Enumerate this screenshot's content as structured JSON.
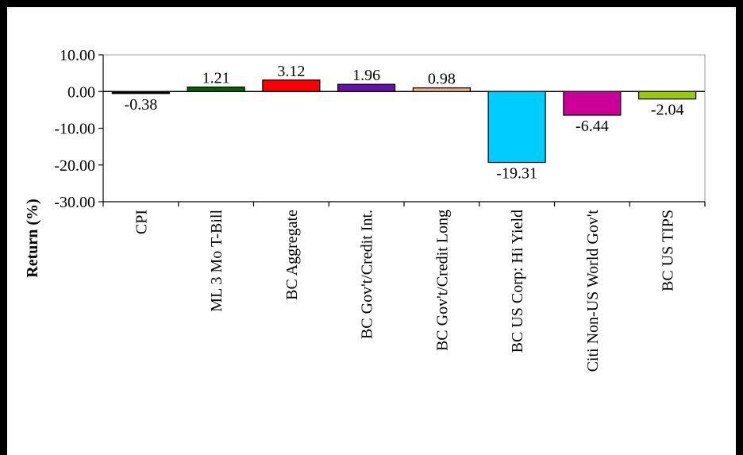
{
  "chart_data": {
    "type": "bar",
    "categories": [
      "CPI",
      "ML 3 Mo T-Bill",
      "BC Aggregate",
      "BC Gov't/Credit Int.",
      "BC Gov't/Credit Long",
      "BC US Corp: Hi Yield",
      "Citi Non-US World Gov't",
      "BC US TIPS"
    ],
    "values": [
      -0.38,
      1.21,
      3.12,
      1.96,
      0.98,
      -19.31,
      -6.44,
      -2.04
    ],
    "value_labels": [
      "-0.38",
      "1.21",
      "3.12",
      "1.96",
      "0.98",
      "-19.31",
      "-6.44",
      "-2.04"
    ],
    "colors": [
      "#000000",
      "#006400",
      "#ff0000",
      "#6a0dad",
      "#f4b183",
      "#00ccff",
      "#cc0099",
      "#99cc00"
    ],
    "ylabel": "Return (%)",
    "ylim": [
      -30,
      10
    ],
    "yticks": [
      10,
      0,
      -10,
      -20,
      -30
    ],
    "ytick_labels": [
      "10.00",
      "0.00",
      "-10.00",
      "-20.00",
      "-30.00"
    ],
    "grid": false
  }
}
